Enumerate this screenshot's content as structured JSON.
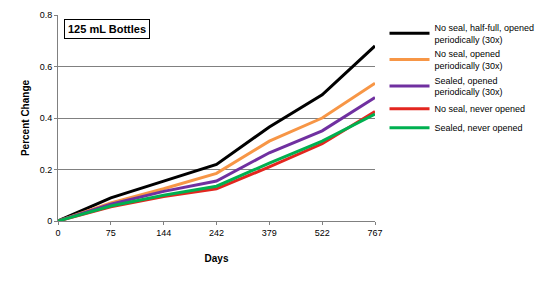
{
  "chart_data": {
    "type": "line",
    "title": "125 mL Bottles",
    "x_label": "Days",
    "y_label": "Percent Change",
    "categories": [
      "0",
      "75",
      "144",
      "242",
      "379",
      "522",
      "767"
    ],
    "series": [
      {
        "name": "No seal, half-full, opened periodically (30x)",
        "color": "#000000",
        "values": [
          0,
          0.09,
          0.155,
          0.22,
          0.365,
          0.49,
          0.68
        ]
      },
      {
        "name": "No seal, opened periodically (30x)",
        "color": "#f79646",
        "values": [
          0,
          0.07,
          0.125,
          0.185,
          0.31,
          0.4,
          0.535
        ]
      },
      {
        "name": "Sealed, opened periodically (30x)",
        "color": "#7030a0",
        "values": [
          0,
          0.065,
          0.115,
          0.155,
          0.265,
          0.35,
          0.48
        ]
      },
      {
        "name": "No seal, never opened",
        "color": "#e3261f",
        "values": [
          0,
          0.055,
          0.095,
          0.125,
          0.21,
          0.3,
          0.425
        ]
      },
      {
        "name": "Sealed, never opened",
        "color": "#00b050",
        "values": [
          0,
          0.058,
          0.1,
          0.135,
          0.225,
          0.31,
          0.415
        ]
      }
    ],
    "ylim": [
      0,
      0.8
    ],
    "yticks": [
      0,
      0.2,
      0.4,
      0.6,
      0.8
    ],
    "grid": true,
    "legend": "right"
  }
}
